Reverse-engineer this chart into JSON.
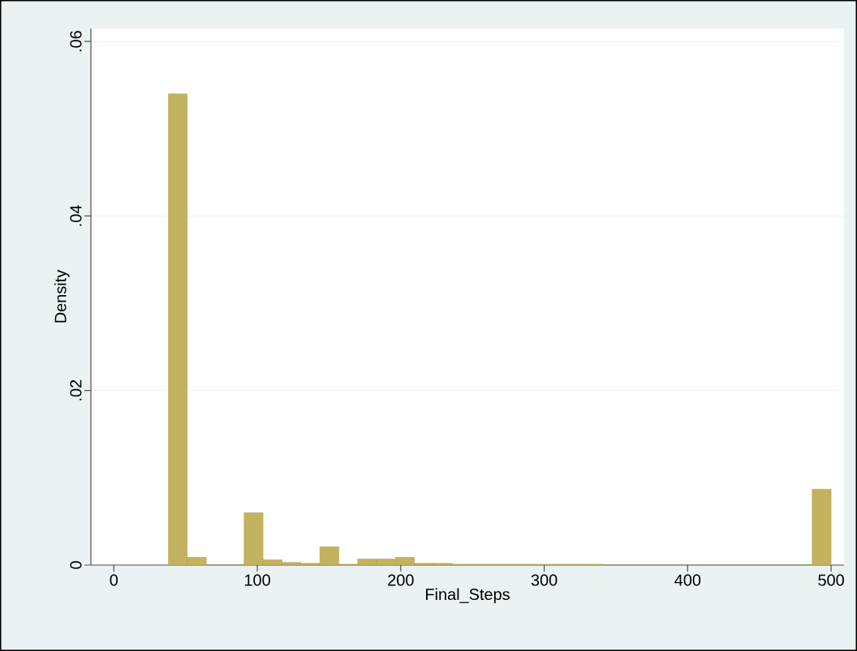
{
  "chart_data": {
    "type": "histogram",
    "xlabel": "Final_Steps",
    "ylabel": "Density",
    "bins": [
      38,
      51.2,
      64.4,
      77.6,
      90.8,
      104,
      117.2,
      130.4,
      143.6,
      156.8,
      170,
      183.2,
      196.4,
      209.6,
      222.8,
      236,
      249.2,
      262.4,
      275.6,
      288.8,
      302,
      315.2,
      328.4,
      341.6,
      354.8,
      368,
      381.2,
      394.4,
      407.6,
      420.8,
      434,
      447.2,
      460.4,
      473.6,
      486.8,
      500
    ],
    "values": [
      0.054,
      0.0009,
      0,
      0,
      0.006,
      0.0006,
      0.0003,
      0.0002,
      0.0021,
      0.0001,
      0.0007,
      0.0007,
      0.0009,
      0.0002,
      0.0002,
      0.0001,
      0.0001,
      0.0001,
      0.0001,
      0.0001,
      0.0001,
      0.0001,
      0.0001,
      0,
      0,
      0,
      0,
      0,
      0,
      0,
      0,
      0,
      0,
      0,
      0.0087
    ],
    "color": "#c4b35e",
    "xlim": [
      -16,
      509
    ],
    "ylim": [
      0,
      0.0615
    ],
    "xticks": [
      0,
      100,
      200,
      300,
      400,
      500
    ],
    "yticks": [
      0,
      {
        "value": 0.02,
        "label": ".02"
      },
      {
        "value": 0.04,
        "label": ".04"
      },
      {
        "value": 0.06,
        "label": ".06"
      }
    ],
    "grid": "y"
  }
}
